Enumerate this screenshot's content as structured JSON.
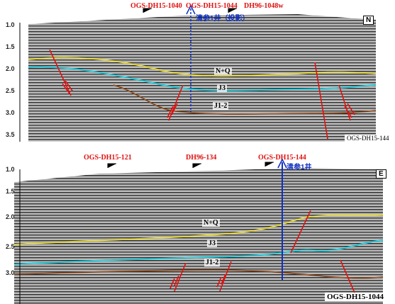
{
  "top_section": {
    "wells_top": [
      "OGS-DH15-1040",
      "OGS-DH15-1044",
      "DH96-1048w"
    ],
    "projected_well": "清参1井（投影）",
    "orientation": "N",
    "time_ticks": [
      "1.0",
      "1.5",
      "2.0",
      "2.5",
      "3.0",
      "3.5"
    ],
    "horizons": [
      "N+Q",
      "J3",
      "J1-2"
    ],
    "corner_label": "OGS-DH15-144"
  },
  "bottom_section": {
    "wells_top": [
      "OGS-DH15-121",
      "DH96-134",
      "OGS-DH15-144"
    ],
    "well": "清参1井",
    "orientation": "E",
    "time_ticks": [
      "1.0",
      "1.5",
      "2.0",
      "2.5",
      "3.0"
    ],
    "horizons": [
      "N+Q",
      "J3",
      "J1-2"
    ],
    "corner_label": "OGS-DH15-1044"
  },
  "colors": {
    "yellow_horizon": "#e0d23a",
    "cyan_horizon": "#22c8d8",
    "brown_horizon": "#8a4a20",
    "fault": "#e01010",
    "well_line": "#1030c0"
  }
}
